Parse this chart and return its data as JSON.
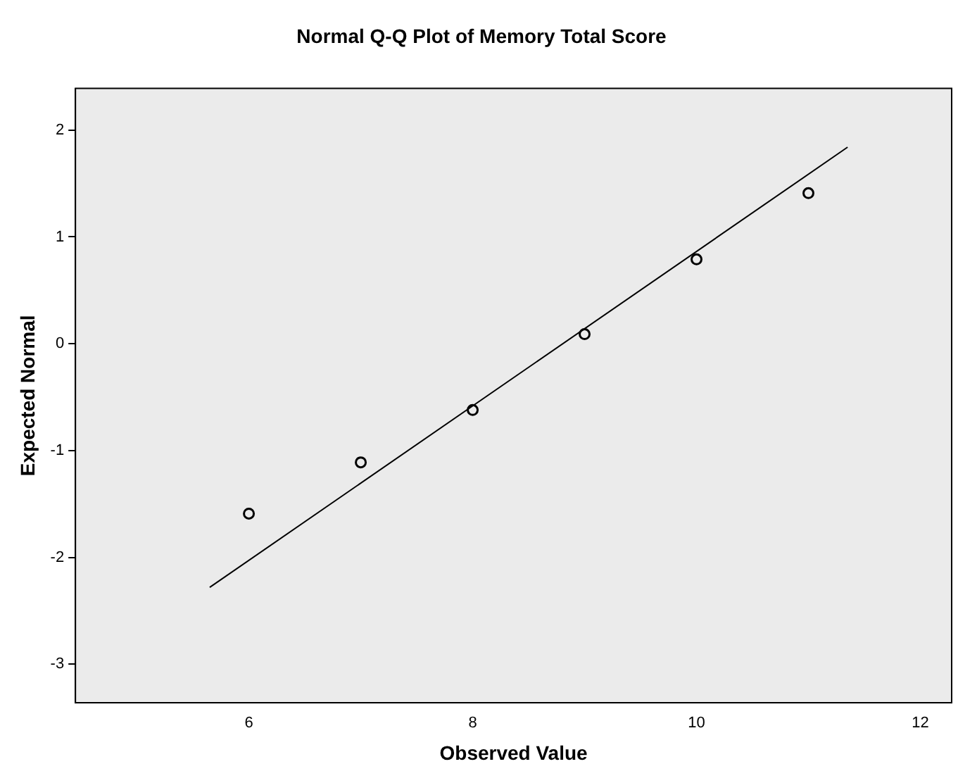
{
  "chart_data": {
    "type": "scatter",
    "title": "Normal Q-Q Plot of Memory Total Score",
    "xlabel": "Observed Value",
    "ylabel": "Expected Normal",
    "xlim": [
      4.45,
      12.28
    ],
    "ylim": [
      -3.36,
      2.39
    ],
    "xticks": [
      6,
      8,
      10,
      12
    ],
    "yticks": [
      -3,
      -2,
      -1,
      0,
      1,
      2
    ],
    "grid": false,
    "legend": false,
    "marker": "circle",
    "series": [
      {
        "type": "scatter",
        "color": "#000000",
        "x": [
          6,
          7,
          8,
          9,
          10,
          11
        ],
        "values": [
          -1.59,
          -1.11,
          -0.62,
          0.09,
          0.79,
          1.41
        ]
      },
      {
        "type": "line",
        "marker": "none",
        "color": "#000000",
        "x": [
          5.65,
          11.35
        ],
        "values": [
          -2.28,
          1.84
        ]
      }
    ]
  }
}
